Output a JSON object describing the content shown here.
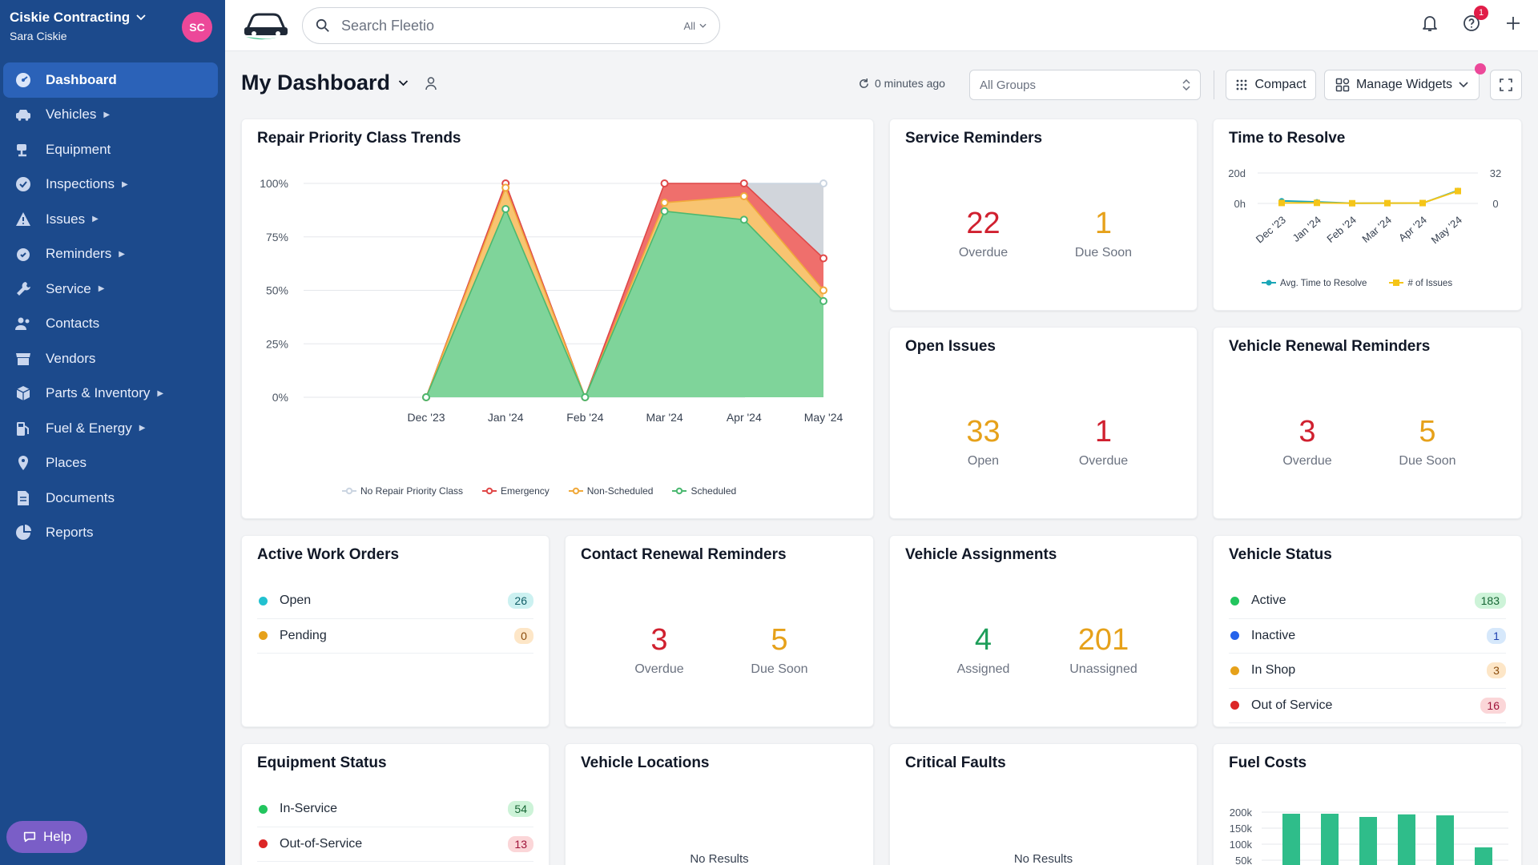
{
  "org": {
    "name": "Ciskie Contracting",
    "user": "Sara Ciskie",
    "initials": "SC"
  },
  "nav": [
    {
      "label": "Dashboard",
      "icon": "dashboard-icon",
      "caret": false,
      "active": true
    },
    {
      "label": "Vehicles",
      "icon": "car-icon",
      "caret": true
    },
    {
      "label": "Equipment",
      "icon": "equipment-icon",
      "caret": false
    },
    {
      "label": "Inspections",
      "icon": "check-circle-icon",
      "caret": true
    },
    {
      "label": "Issues",
      "icon": "warning-icon",
      "caret": true
    },
    {
      "label": "Reminders",
      "icon": "reminder-icon",
      "caret": true
    },
    {
      "label": "Service",
      "icon": "wrench-icon",
      "caret": true
    },
    {
      "label": "Contacts",
      "icon": "contacts-icon",
      "caret": false
    },
    {
      "label": "Vendors",
      "icon": "store-icon",
      "caret": false
    },
    {
      "label": "Parts & Inventory",
      "icon": "box-icon",
      "caret": true
    },
    {
      "label": "Fuel & Energy",
      "icon": "fuel-icon",
      "caret": true
    },
    {
      "label": "Places",
      "icon": "pin-icon",
      "caret": false
    },
    {
      "label": "Documents",
      "icon": "document-icon",
      "caret": false
    },
    {
      "label": "Reports",
      "icon": "pie-chart-icon",
      "caret": false
    }
  ],
  "help_label": "Help",
  "search": {
    "placeholder": "Search Fleetio",
    "scope": "All"
  },
  "notifications": {
    "help_badge": "1"
  },
  "dashboard": {
    "title": "My Dashboard",
    "refresh": "0 minutes ago",
    "groups": "All Groups",
    "compact": "Compact",
    "manage": "Manage Widgets"
  },
  "cards": {
    "repair": {
      "title": "Repair Priority Class Trends"
    },
    "service_reminders": {
      "title": "Service Reminders",
      "a": {
        "value": "22",
        "label": "Overdue"
      },
      "b": {
        "value": "1",
        "label": "Due Soon"
      }
    },
    "time_to_resolve": {
      "title": "Time to Resolve"
    },
    "open_issues": {
      "title": "Open Issues",
      "a": {
        "value": "33",
        "label": "Open"
      },
      "b": {
        "value": "1",
        "label": "Overdue"
      }
    },
    "vehicle_renewal": {
      "title": "Vehicle Renewal Reminders",
      "a": {
        "value": "3",
        "label": "Overdue"
      },
      "b": {
        "value": "5",
        "label": "Due Soon"
      }
    },
    "active_work_orders": {
      "title": "Active Work Orders",
      "rows": [
        {
          "label": "Open",
          "count": "26",
          "color": "#22c1d0"
        },
        {
          "label": "Pending",
          "count": "0",
          "color": "#e6a11a"
        }
      ]
    },
    "contact_renewal": {
      "title": "Contact Renewal Reminders",
      "a": {
        "value": "3",
        "label": "Overdue"
      },
      "b": {
        "value": "5",
        "label": "Due Soon"
      }
    },
    "vehicle_assignments": {
      "title": "Vehicle Assignments",
      "a": {
        "value": "4",
        "label": "Assigned"
      },
      "b": {
        "value": "201",
        "label": "Unassigned"
      }
    },
    "vehicle_status": {
      "title": "Vehicle Status",
      "rows": [
        {
          "label": "Active",
          "count": "183",
          "color": "#22c55e"
        },
        {
          "label": "Inactive",
          "count": "1",
          "color": "#2563eb"
        },
        {
          "label": "In Shop",
          "count": "3",
          "color": "#e6a11a"
        },
        {
          "label": "Out of Service",
          "count": "16",
          "color": "#dc2626"
        }
      ]
    },
    "equipment_status": {
      "title": "Equipment Status",
      "rows": [
        {
          "label": "In-Service",
          "count": "54",
          "color": "#22c55e"
        },
        {
          "label": "Out-of-Service",
          "count": "13",
          "color": "#dc2626"
        }
      ]
    },
    "vehicle_locations": {
      "title": "Vehicle Locations",
      "empty": "No Results"
    },
    "critical_faults": {
      "title": "Critical Faults",
      "empty": "No Results"
    },
    "fuel_costs": {
      "title": "Fuel Costs"
    }
  },
  "chart_data": [
    {
      "id": "repair",
      "type": "area",
      "title": "Repair Priority Class Trends",
      "categories": [
        "Dec '23",
        "Jan '24",
        "Feb '24",
        "Mar '24",
        "Apr '24",
        "May '24"
      ],
      "yticks": [
        "100%",
        "75%",
        "50%",
        "25%",
        "0%"
      ],
      "ylim": [
        0,
        100
      ],
      "series": [
        {
          "name": "No Repair Priority Class",
          "color": "#d1d5db",
          "values": [
            0,
            100,
            0,
            100,
            100,
            100
          ]
        },
        {
          "name": "Emergency",
          "color": "#ef6f6c",
          "values": [
            0,
            100,
            0,
            100,
            100,
            65
          ]
        },
        {
          "name": "Non-Scheduled",
          "color": "#f8c471",
          "values": [
            0,
            98,
            0,
            91,
            94,
            50
          ]
        },
        {
          "name": "Scheduled",
          "color": "#7fd49a",
          "values": [
            0,
            88,
            0,
            87,
            83,
            45
          ]
        }
      ],
      "legend": "bottom"
    },
    {
      "id": "time_to_resolve",
      "type": "line",
      "title": "Time to Resolve",
      "categories": [
        "Dec '23",
        "Jan '24",
        "Feb '24",
        "Mar '24",
        "Apr '24",
        "May '24"
      ],
      "y_left_ticks": [
        "20d",
        "0h"
      ],
      "y_right_ticks": [
        "32",
        "0"
      ],
      "series": [
        {
          "name": "Avg. Time to Resolve",
          "color": "#1aa6b7",
          "axis": "left",
          "values": [
            1.7,
            1.0,
            0.1,
            0.2,
            0.2,
            8.5
          ]
        },
        {
          "name": "# of Issues",
          "color": "#f5c518",
          "axis": "right",
          "values": [
            0.5,
            0.6,
            0.2,
            0.3,
            0.4,
            13.0
          ]
        }
      ],
      "legend": "bottom"
    },
    {
      "id": "fuel_costs",
      "type": "bar",
      "title": "Fuel Costs",
      "yticks": [
        "200k",
        "150k",
        "100k",
        "50k"
      ],
      "ylim": [
        0,
        210000
      ],
      "values": [
        195000,
        195000,
        185000,
        193000,
        190000,
        90000
      ],
      "color": "#2fbd8a"
    }
  ]
}
